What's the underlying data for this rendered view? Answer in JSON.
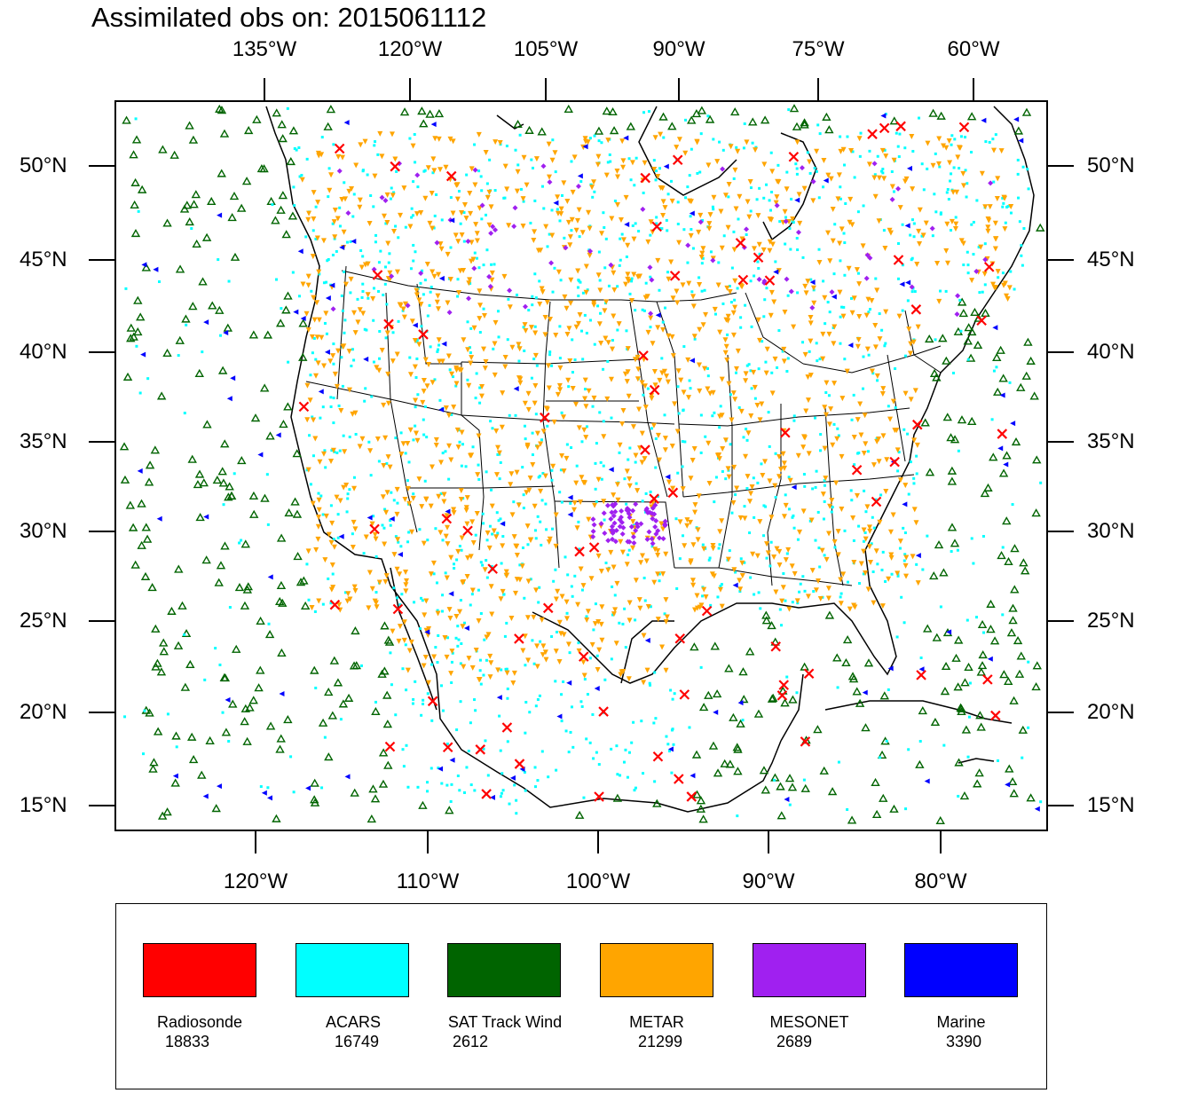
{
  "title": "Assimilated obs on: 2015061112",
  "top_lon_ticks": [
    "135°W",
    "120°W",
    "105°W",
    "90°W",
    "75°W",
    "60°W"
  ],
  "bottom_lon_ticks": [
    "120°W",
    "110°W",
    "100°W",
    "90°W",
    "80°W"
  ],
  "lat_ticks": [
    "50°N",
    "45°N",
    "40°N",
    "35°N",
    "30°N",
    "25°N",
    "20°N",
    "15°N"
  ],
  "legend": [
    {
      "name": "Radiosonde",
      "count": "18833",
      "color": "#ff0000"
    },
    {
      "name": "ACARS",
      "count": "16749",
      "color": "#00ffff"
    },
    {
      "name": "SAT Track Wind",
      "count": "2612",
      "color": "#006400"
    },
    {
      "name": "METAR",
      "count": "21299",
      "color": "#ffa500"
    },
    {
      "name": "MESONET",
      "count": "2689",
      "color": "#a020f0"
    },
    {
      "name": "Marine",
      "count": "3390",
      "color": "#0000ff"
    }
  ],
  "colors": {
    "radiosonde": "#ff0000",
    "acars": "#00ffff",
    "sat_track_wind": "#006400",
    "metar": "#ffa500",
    "mesonet": "#a020f0",
    "marine": "#0000ff",
    "outline": "#000000"
  },
  "map": {
    "lat_range": [
      "15°N",
      "50°N"
    ],
    "lon_range": [
      "120°W",
      "60°W"
    ],
    "layers": [
      "coastlines",
      "state-borders",
      "observations"
    ]
  }
}
